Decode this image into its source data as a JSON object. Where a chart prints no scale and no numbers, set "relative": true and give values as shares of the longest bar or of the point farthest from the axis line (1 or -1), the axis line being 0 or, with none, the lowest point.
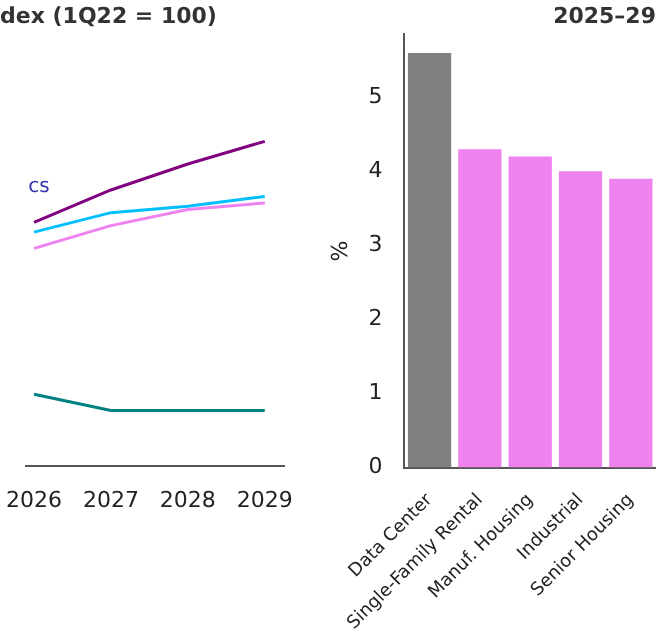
{
  "chart_data": [
    {
      "type": "line",
      "title": "dex (1Q22 = 100)",
      "relative": true,
      "x": [
        2026,
        2027,
        2028,
        2029
      ],
      "xlim": [
        2025.9,
        2029.25
      ],
      "xticks": [
        2026,
        2027,
        2028,
        2029
      ],
      "grid": false,
      "legend": false,
      "marker": "none",
      "line_style": "solid",
      "tick_labels": "x",
      "annotations": [
        "cs"
      ],
      "series": [
        {
          "color": "#800080",
          "values": [
            0.75,
            0.85,
            0.93,
            1
          ]
        },
        {
          "color": "#00bfff",
          "values": [
            0.72,
            0.78,
            0.8,
            0.83
          ]
        },
        {
          "color": "#ee82ee",
          "values": [
            0.67,
            0.74,
            0.79,
            0.81
          ]
        },
        {
          "color": "#008080",
          "values": [
            0.22,
            0.17,
            0.17,
            0.17
          ]
        }
      ]
    },
    {
      "type": "bar",
      "title": "2025–29",
      "ylabel": "%",
      "categories": [
        "Data Center",
        "Single-Family Rental",
        "Manuf. Housing",
        "Industrial",
        "Senior Housing"
      ],
      "values": [
        5.6,
        4.3,
        4.2,
        4.0,
        3.9
      ],
      "colors": [
        "#808080",
        "#ee82ee",
        "#ee82ee",
        "#ee82ee",
        "#ee82ee"
      ],
      "ylim": [
        0,
        5.85
      ],
      "yticks": [
        0,
        1,
        2,
        3,
        4,
        5
      ],
      "grid": false,
      "legend": false
    }
  ]
}
